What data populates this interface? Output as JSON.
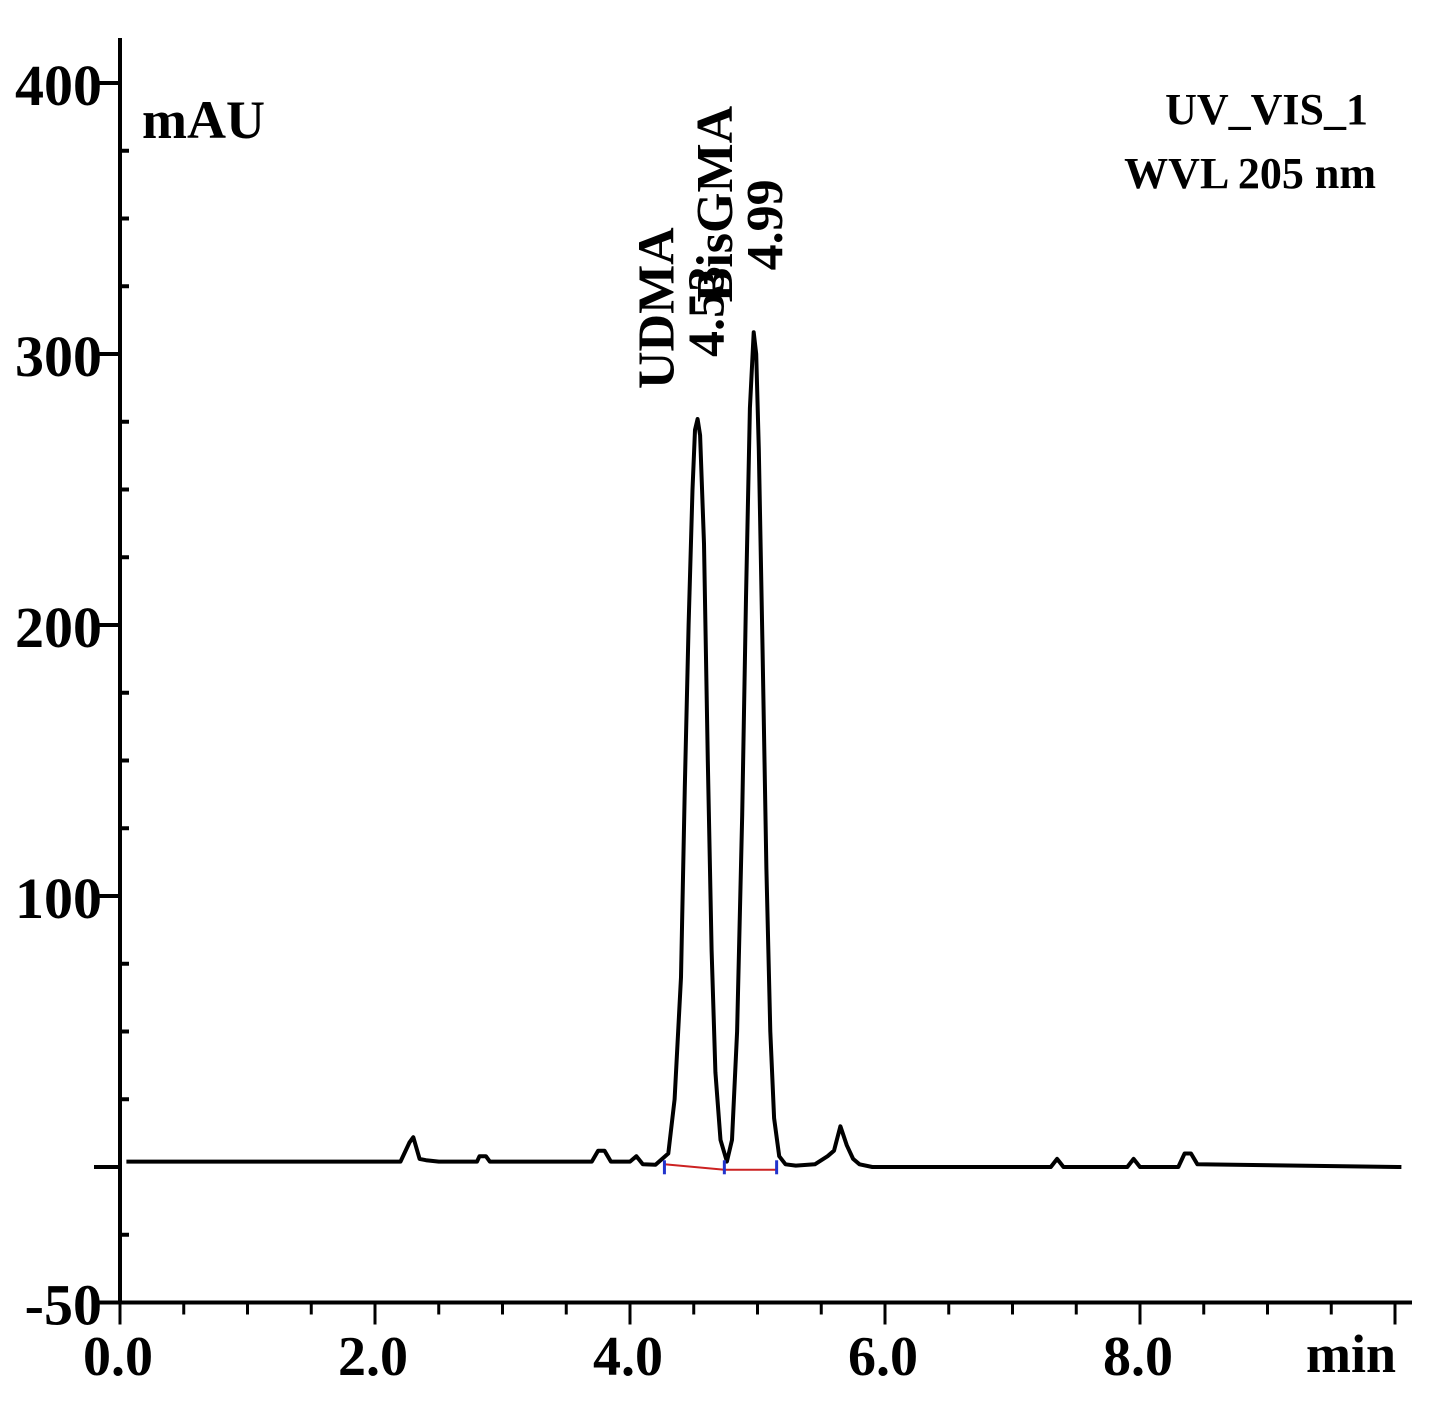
{
  "chart_data": {
    "type": "line",
    "title": "",
    "ylabel": "mAU",
    "xlabel": "min",
    "ylim": [
      -50,
      420
    ],
    "xlim": [
      0.0,
      10.2
    ],
    "y_ticks": [
      "400",
      "300",
      "200",
      "100",
      "-50"
    ],
    "x_ticks": [
      "0.0",
      "2.0",
      "4.0",
      "6.0",
      "8.0"
    ],
    "info_lines": [
      "UV_VIS_1",
      "WVL 205 nm"
    ],
    "grid": false,
    "legend": "none",
    "series": [
      {
        "color": "#000000",
        "x": [
          0.05,
          2.2,
          2.23,
          2.27,
          2.3,
          2.35,
          2.4,
          2.5,
          2.8,
          2.82,
          2.87,
          2.9,
          3.7,
          3.75,
          3.8,
          3.85,
          4.0,
          4.05,
          4.1,
          4.2,
          4.3,
          4.35,
          4.4,
          4.43,
          4.46,
          4.49,
          4.51,
          4.53,
          4.55,
          4.58,
          4.61,
          4.64,
          4.67,
          4.71,
          4.76,
          4.8,
          4.84,
          4.88,
          4.91,
          4.94,
          4.97,
          4.99,
          5.01,
          5.04,
          5.07,
          5.1,
          5.13,
          5.17,
          5.22,
          5.3,
          5.45,
          5.55,
          5.6,
          5.65,
          5.7,
          5.75,
          5.8,
          5.9,
          6.5,
          7.3,
          7.35,
          7.4,
          7.9,
          7.95,
          8.0,
          8.3,
          8.35,
          8.4,
          8.45,
          10.05
        ],
        "y": [
          2.0,
          2.0,
          5,
          9,
          11,
          3,
          2.5,
          2.0,
          2.0,
          4,
          4,
          2.0,
          2.0,
          6,
          6,
          2.0,
          2.0,
          4,
          1,
          0.8,
          5,
          25,
          70,
          140,
          200,
          250,
          272,
          276,
          270,
          230,
          150,
          80,
          35,
          10,
          2.0,
          10,
          50,
          130,
          210,
          280,
          308,
          300,
          265,
          190,
          110,
          50,
          18,
          4,
          1.0,
          0.5,
          1.0,
          4,
          6,
          15,
          8,
          3,
          1.0,
          0.0,
          0.0,
          0.0,
          3,
          0.0,
          0.0,
          3,
          0.0,
          0.0,
          5,
          5,
          1.0,
          0.0
        ]
      }
    ],
    "baseline_segment": {
      "color": "#cc2222",
      "x": [
        4.27,
        4.74,
        5.15
      ],
      "y": [
        1.0,
        -1.0,
        -1.0
      ]
    },
    "boundary_markers": {
      "color": "#2233cc",
      "x": [
        4.27,
        4.74,
        5.15
      ]
    },
    "peaks": [
      {
        "name": "UDMA",
        "rt": "4.53",
        "x": 4.53,
        "y": 276
      },
      {
        "name": "BisGMA",
        "rt": "4.99",
        "x": 4.99,
        "y": 308
      }
    ]
  }
}
